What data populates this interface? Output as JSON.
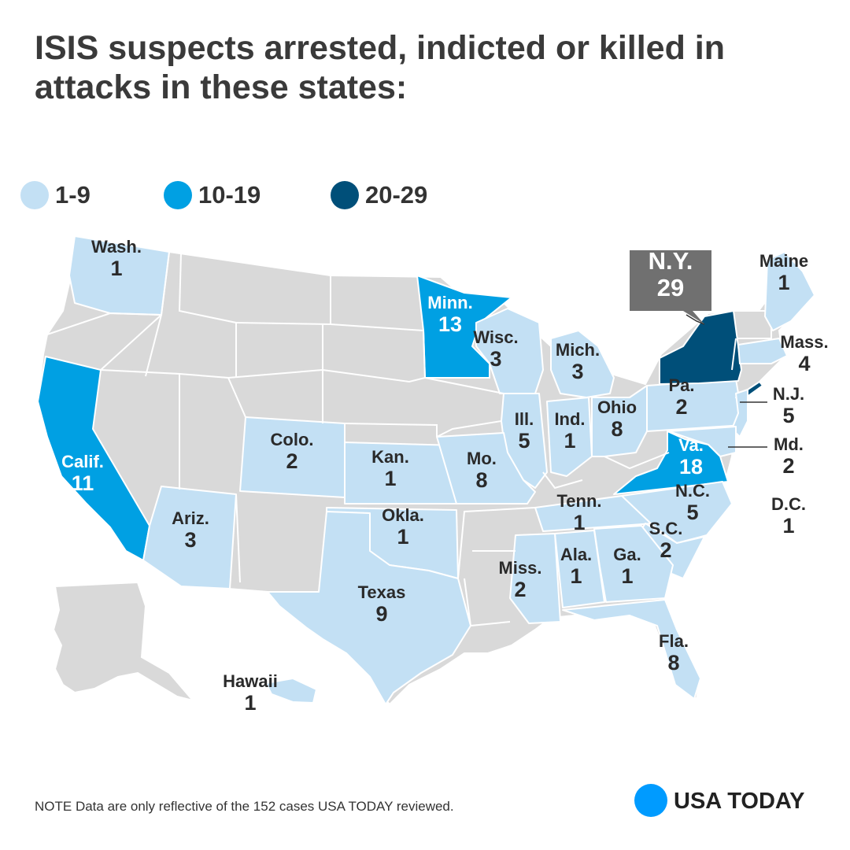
{
  "title": "ISIS suspects arrested, indicted or killed in attacks in these states:",
  "legend": [
    {
      "label": "1-9",
      "color": "#c3e0f4"
    },
    {
      "label": "10-19",
      "color": "#00a0e3"
    },
    {
      "label": "20-29",
      "color": "#004f79"
    }
  ],
  "base_color": "#d9d9d9",
  "states": [
    {
      "id": "wash",
      "name": "Wash.",
      "count": "1",
      "tier": 0
    },
    {
      "id": "calif",
      "name": "Calif.",
      "count": "11",
      "tier": 1
    },
    {
      "id": "ariz",
      "name": "Ariz.",
      "count": "3",
      "tier": 0
    },
    {
      "id": "colo",
      "name": "Colo.",
      "count": "2",
      "tier": 0
    },
    {
      "id": "kan",
      "name": "Kan.",
      "count": "1",
      "tier": 0
    },
    {
      "id": "okla",
      "name": "Okla.",
      "count": "1",
      "tier": 0
    },
    {
      "id": "texas",
      "name": "Texas",
      "count": "9",
      "tier": 0
    },
    {
      "id": "minn",
      "name": "Minn.",
      "count": "13",
      "tier": 1
    },
    {
      "id": "wisc",
      "name": "Wisc.",
      "count": "3",
      "tier": 0
    },
    {
      "id": "mich",
      "name": "Mich.",
      "count": "3",
      "tier": 0
    },
    {
      "id": "ill",
      "name": "Ill.",
      "count": "5",
      "tier": 0
    },
    {
      "id": "ind",
      "name": "Ind.",
      "count": "1",
      "tier": 0
    },
    {
      "id": "ohio",
      "name": "Ohio",
      "count": "8",
      "tier": 0
    },
    {
      "id": "mo",
      "name": "Mo.",
      "count": "8",
      "tier": 0
    },
    {
      "id": "pa",
      "name": "Pa.",
      "count": "2",
      "tier": 0
    },
    {
      "id": "ny",
      "name": "N.Y.",
      "count": "29",
      "tier": 2
    },
    {
      "id": "maine",
      "name": "Maine",
      "count": "1",
      "tier": 0
    },
    {
      "id": "mass",
      "name": "Mass.",
      "count": "4",
      "tier": 0
    },
    {
      "id": "nj",
      "name": "N.J.",
      "count": "5",
      "tier": 0
    },
    {
      "id": "md",
      "name": "Md.",
      "count": "2",
      "tier": 0
    },
    {
      "id": "va",
      "name": "Va.",
      "count": "18",
      "tier": 1
    },
    {
      "id": "tenn",
      "name": "Tenn.",
      "count": "1",
      "tier": 0
    },
    {
      "id": "nc",
      "name": "N.C.",
      "count": "5",
      "tier": 0
    },
    {
      "id": "sc",
      "name": "S.C.",
      "count": "2",
      "tier": 0
    },
    {
      "id": "ga",
      "name": "Ga.",
      "count": "1",
      "tier": 0
    },
    {
      "id": "ala",
      "name": "Ala.",
      "count": "1",
      "tier": 0
    },
    {
      "id": "miss",
      "name": "Miss.",
      "count": "2",
      "tier": 0
    },
    {
      "id": "fla",
      "name": "Fla.",
      "count": "8",
      "tier": 0
    },
    {
      "id": "dc",
      "name": "D.C.",
      "count": "1",
      "tier": 0
    },
    {
      "id": "hawaii",
      "name": "Hawaii",
      "count": "1",
      "tier": 0
    }
  ],
  "note": "NOTE Data are only reflective of the 152 cases USA TODAY reviewed.",
  "brand": {
    "name": "USA TODAY",
    "color": "#009bff"
  }
}
